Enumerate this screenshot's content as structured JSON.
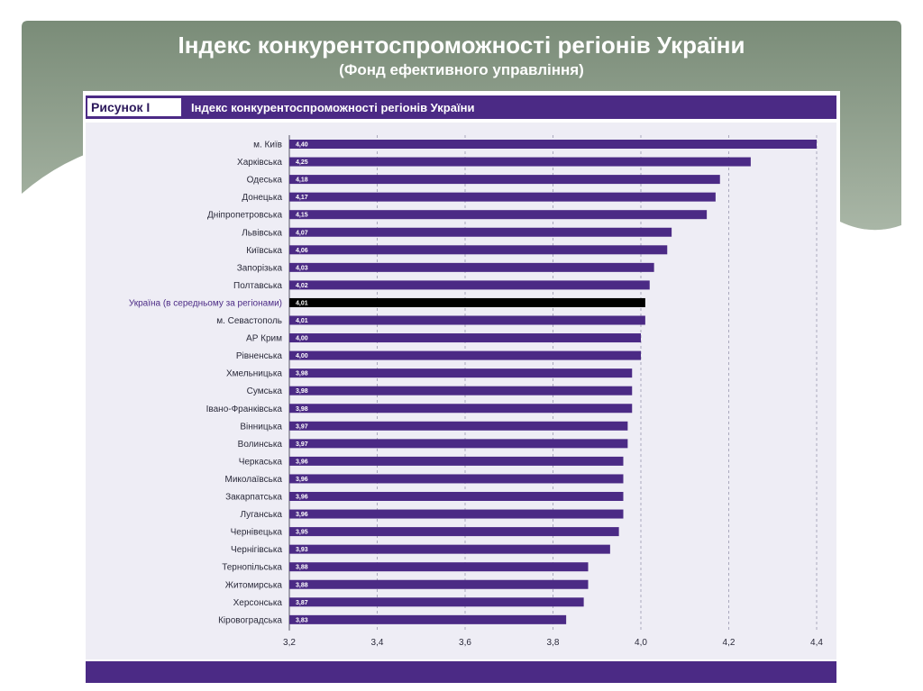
{
  "slide": {
    "title": "Індекс конкурентоспроможності регіонів України",
    "subtitle": "(Фонд ефективного управління)"
  },
  "figure": {
    "label": "Рисунок I",
    "title": "Індекс конкурентоспроможності регіонів України"
  },
  "colors": {
    "bar": "#4b2a85",
    "highlight_bar": "#000000",
    "header": "#4b2a85",
    "slide_bg": "#8a9a86"
  },
  "chart_data": {
    "type": "bar",
    "orientation": "horizontal",
    "categories": [
      "м. Київ",
      "Харківська",
      "Одеська",
      "Донецька",
      "Дніпропетровська",
      "Львівська",
      "Київська",
      "Запорізька",
      "Полтавська",
      "Україна (в середньому за регіонами)",
      "м. Севастополь",
      "АР Крим",
      "Рівненська",
      "Хмельницька",
      "Сумська",
      "Івано-Франківська",
      "Вінницька",
      "Волинська",
      "Черкаська",
      "Миколаївська",
      "Закарпатська",
      "Луганська",
      "Чернівецька",
      "Чернігівська",
      "Тернопільська",
      "Житомирська",
      "Херсонська",
      "Кіровоградська"
    ],
    "values": [
      4.4,
      4.25,
      4.18,
      4.17,
      4.15,
      4.07,
      4.06,
      4.03,
      4.02,
      4.01,
      4.01,
      4.0,
      4.0,
      3.98,
      3.98,
      3.98,
      3.97,
      3.97,
      3.96,
      3.96,
      3.96,
      3.96,
      3.95,
      3.93,
      3.88,
      3.88,
      3.87,
      3.83
    ],
    "value_labels": [
      "4,40",
      "4,25",
      "4,18",
      "4,17",
      "4,15",
      "4,07",
      "4,06",
      "4,03",
      "4,02",
      "4,01",
      "4,01",
      "4,00",
      "4,00",
      "3,98",
      "3,98",
      "3,98",
      "3,97",
      "3,97",
      "3,96",
      "3,96",
      "3,96",
      "3,96",
      "3,95",
      "3,93",
      "3,88",
      "3,88",
      "3,87",
      "3,83"
    ],
    "highlight_category": "Україна (в середньому за регіонами)",
    "xlim": [
      3.2,
      4.4
    ],
    "ticks": [
      3.2,
      3.4,
      3.6,
      3.8,
      4.0,
      4.2,
      4.4
    ],
    "tick_labels": [
      "3,2",
      "3,4",
      "3,6",
      "3,8",
      "4,0",
      "4,2",
      "4,4"
    ],
    "grid": true,
    "title": "Індекс конкурентоспроможності регіонів України"
  }
}
